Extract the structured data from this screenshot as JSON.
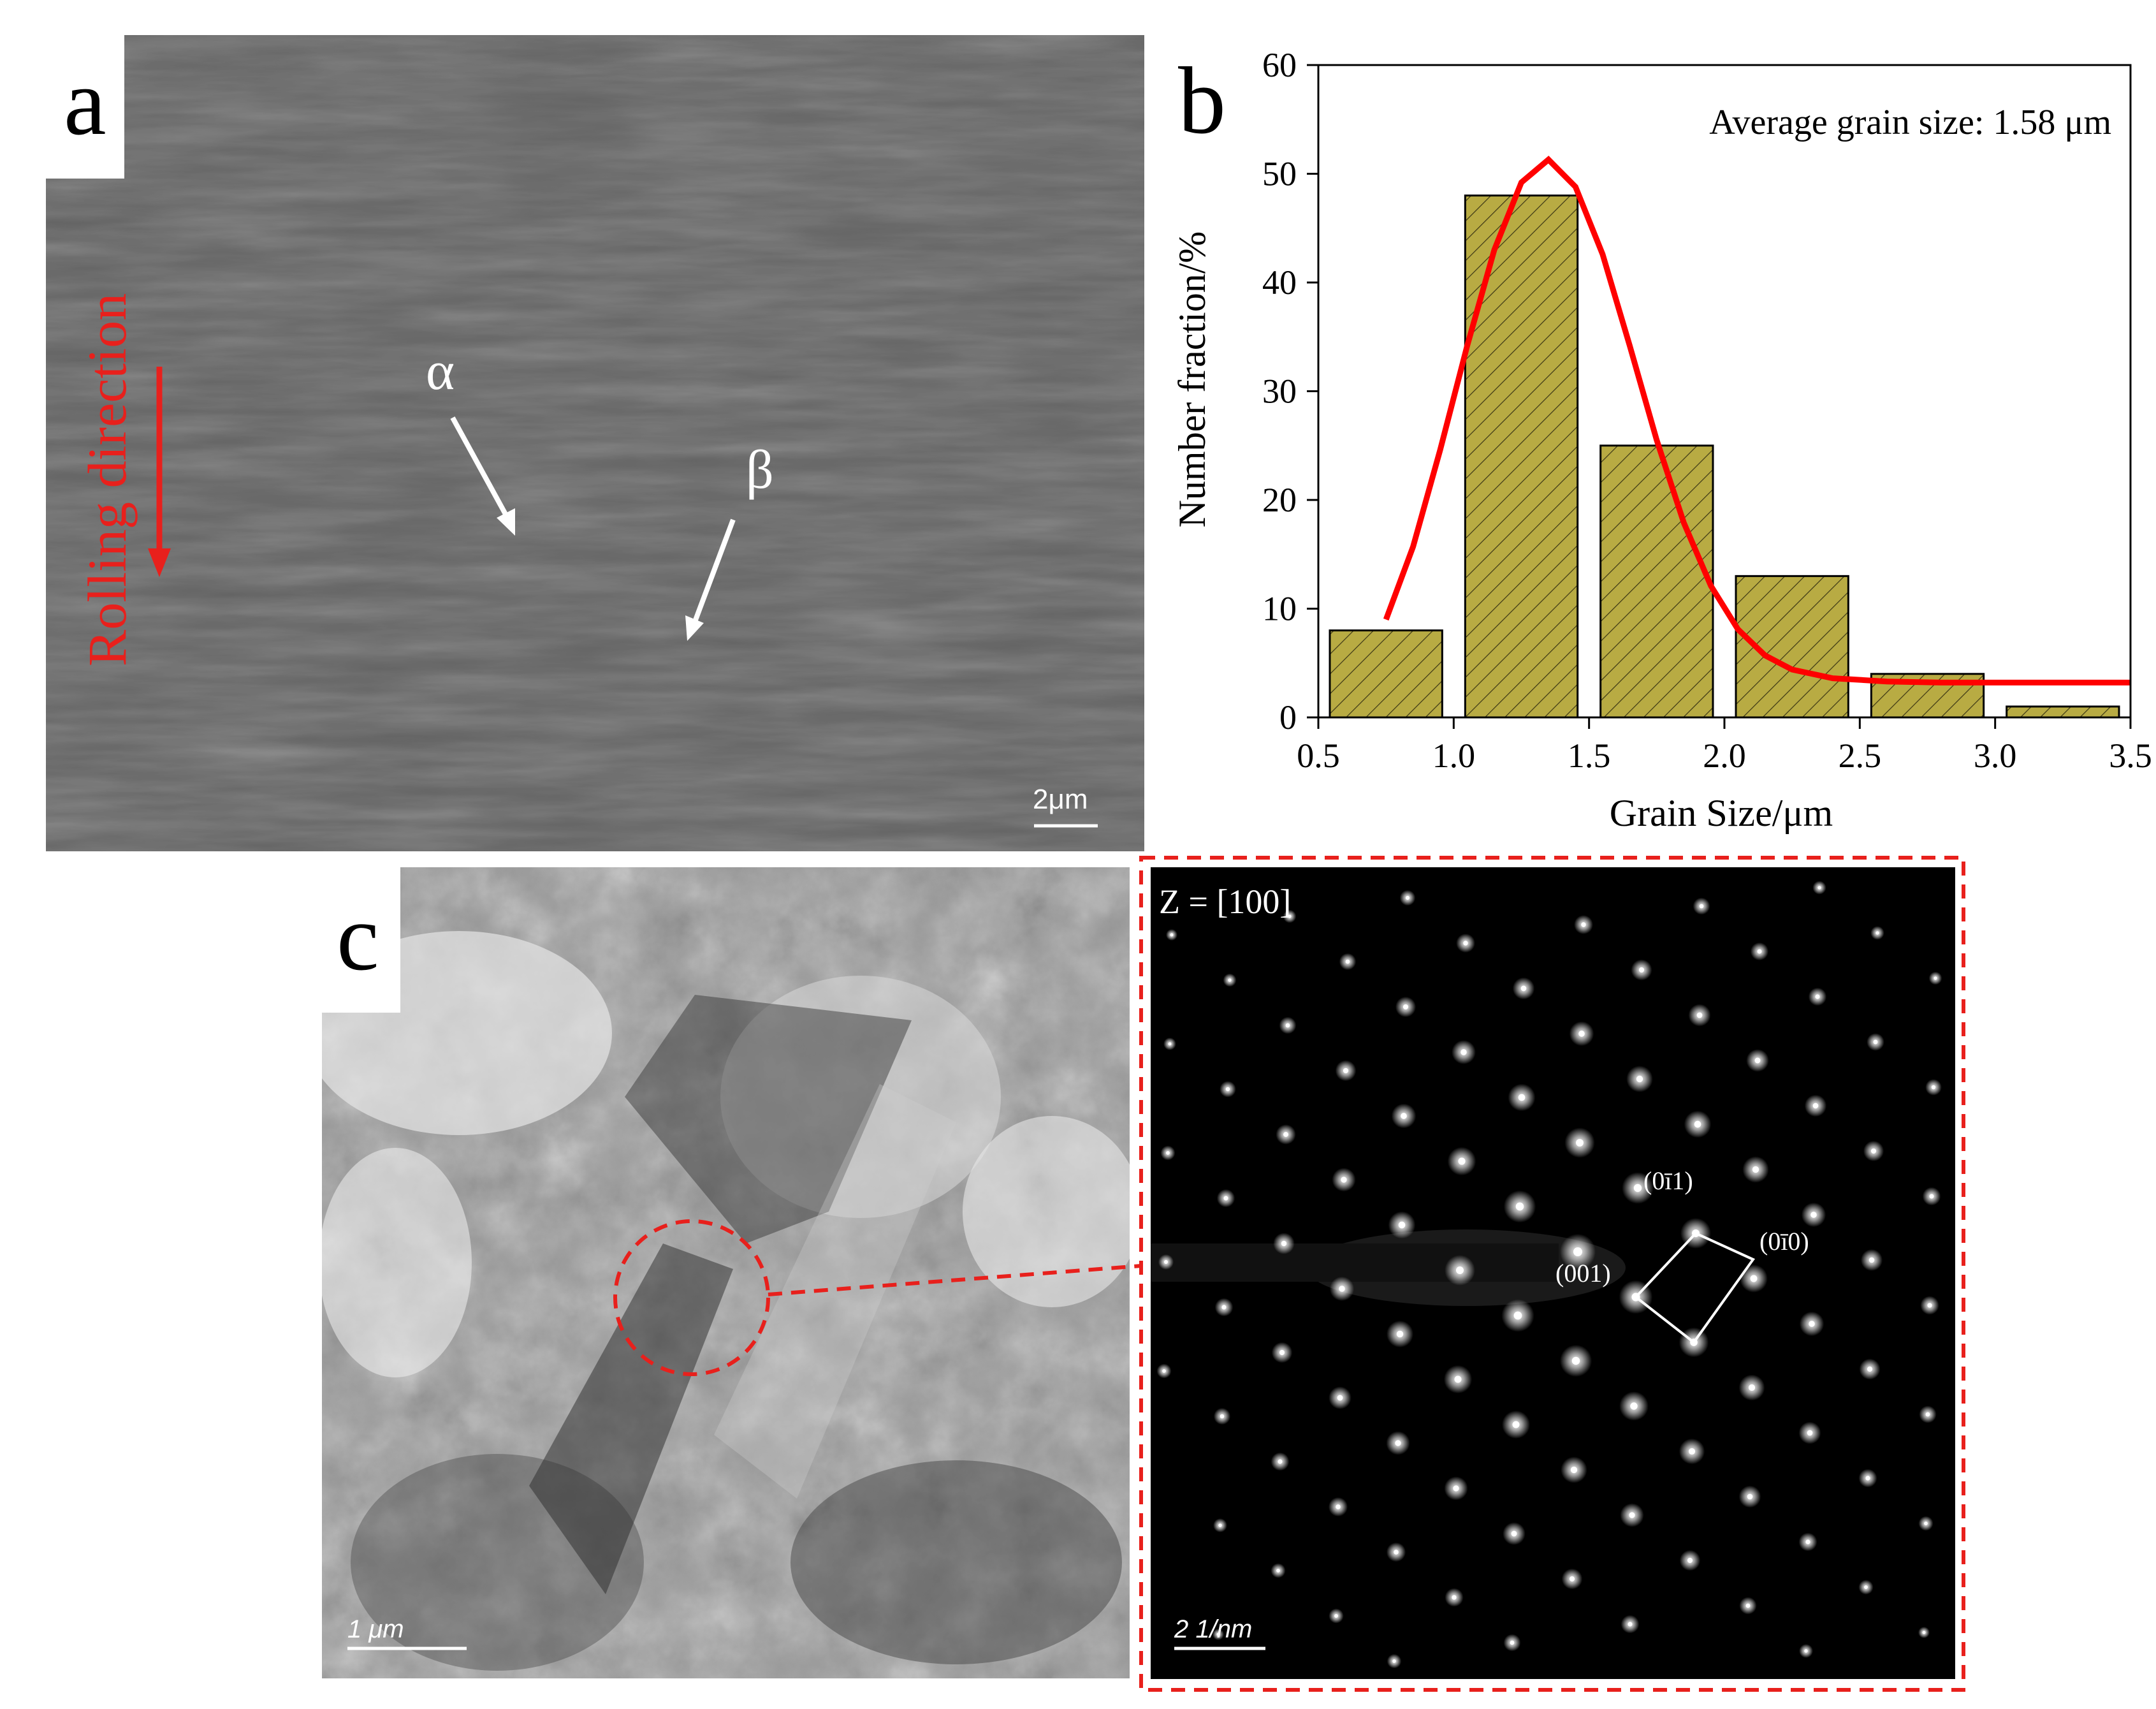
{
  "panels": {
    "a": {
      "letter": "a",
      "rolling_label": "Rolling direction",
      "alpha": "α",
      "beta": "β",
      "scale_bar": "2μm"
    },
    "b": {
      "letter": "b"
    },
    "c": {
      "letter": "c",
      "scale_bar_left": "1 μm",
      "zone_label": "Z = [100]",
      "scale_bar_right": "2 1/nm",
      "spot_labels": [
        "(0ī1)",
        "(0ī0)",
        "(001)"
      ]
    }
  },
  "colors": {
    "bar_fill": "#b8ab43",
    "fit_line": "#ff0000",
    "annotation_red": "#e8201c"
  },
  "chart_data": {
    "type": "bar",
    "annotation": "Average grain size: 1.58 μm",
    "xlabel": "Grain Size/μm",
    "ylabel": "Number fraction/%",
    "xlim": [
      0.5,
      3.5
    ],
    "ylim": [
      0,
      60
    ],
    "xticks": [
      0.5,
      1.0,
      1.5,
      2.0,
      2.5,
      3.0,
      3.5
    ],
    "xtick_labels": [
      "0.5",
      "1.0",
      "1.5",
      "2.0",
      "2.5",
      "3.0",
      "3.5"
    ],
    "yticks": [
      0,
      10,
      20,
      30,
      40,
      50,
      60
    ],
    "ytick_labels": [
      "0",
      "10",
      "20",
      "30",
      "40",
      "50",
      "60"
    ],
    "bins": [
      [
        0.5,
        1.0
      ],
      [
        1.0,
        1.5
      ],
      [
        1.5,
        2.0
      ],
      [
        2.0,
        2.5
      ],
      [
        2.5,
        3.0
      ],
      [
        3.0,
        3.5
      ]
    ],
    "values": [
      8,
      48,
      25,
      13,
      4,
      1
    ],
    "fit_curve": {
      "x": [
        0.75,
        0.85,
        0.95,
        1.05,
        1.15,
        1.25,
        1.35,
        1.45,
        1.55,
        1.65,
        1.75,
        1.85,
        1.95,
        2.05,
        2.15,
        2.25,
        2.4,
        2.6,
        2.8,
        3.0,
        3.2,
        3.5
      ],
      "y": [
        9.0,
        15.7,
        24.6,
        34.2,
        43.0,
        49.2,
        51.3,
        48.8,
        42.6,
        34.2,
        25.5,
        17.9,
        12.1,
        8.1,
        5.7,
        4.4,
        3.6,
        3.3,
        3.2,
        3.2,
        3.2,
        3.2
      ]
    },
    "grid": false
  }
}
